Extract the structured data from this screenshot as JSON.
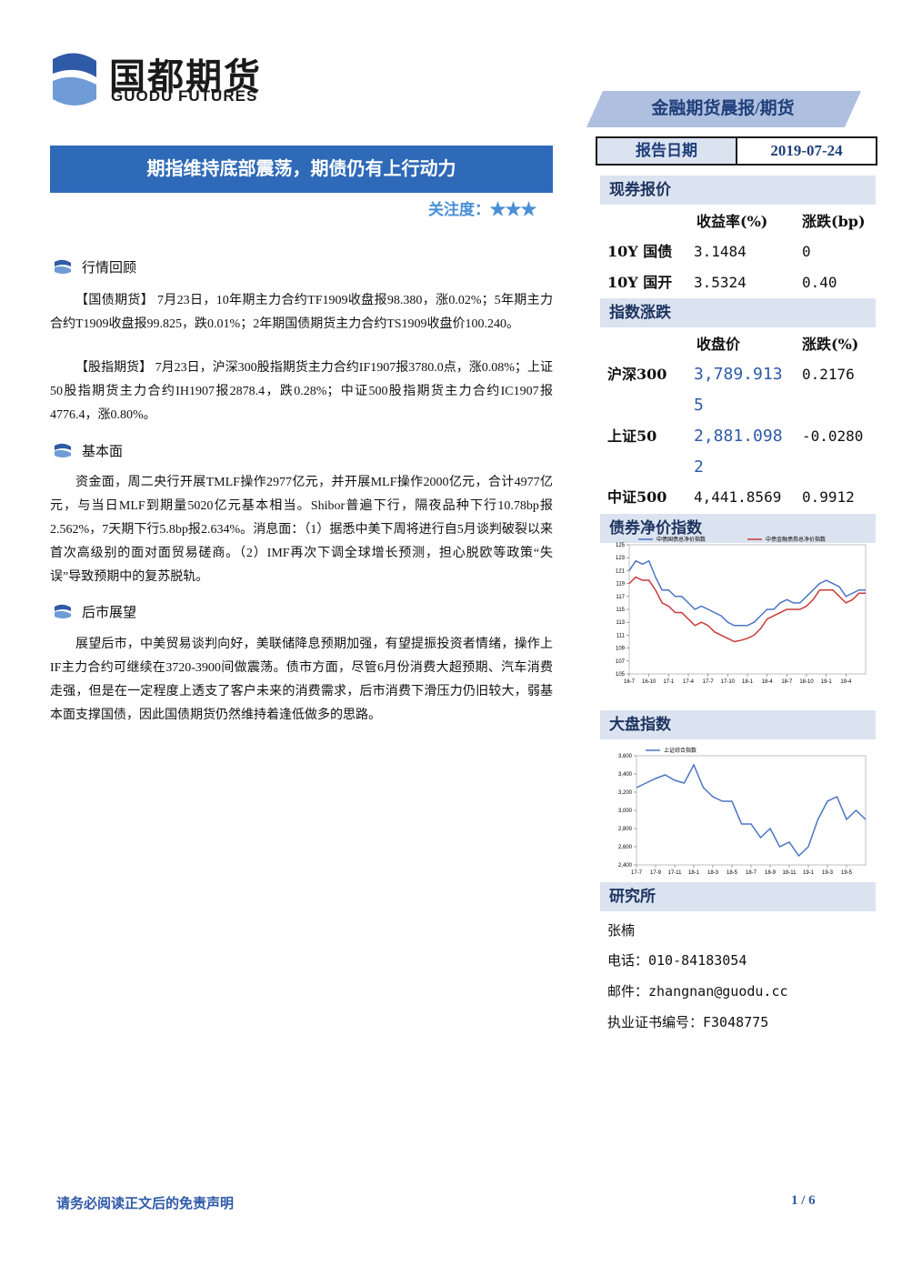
{
  "header": {
    "logo_cn": "国都期货",
    "logo_en": "GUODU FUTURES",
    "banner": "金融期货晨报/期货"
  },
  "report_date": {
    "label": "报告日期",
    "value": "2019-07-24"
  },
  "title": "期指维持底部震荡，期债仍有上行动力",
  "attention": {
    "label": "关注度：",
    "stars": "★★★"
  },
  "sections": [
    {
      "heading": "行情回顾",
      "paragraphs": [
        "【国债期货】 7月23日，10年期主力合约TF1909收盘报98.380，涨0.02%；5年期主力合约T1909收盘报99.825，跌0.01%；2年期国债期货主力合约TS1909收盘价100.240。",
        "【股指期货】 7月23日，沪深300股指期货主力合约IF1907报3780.0点，涨0.08%；上证50股指期货主力合约IH1907报2878.4，跌0.28%；中证500股指期货主力合约IC1907报4776.4，涨0.80%。"
      ]
    },
    {
      "heading": "基本面",
      "paragraphs": [
        "资金面，周二央行开展TMLF操作2977亿元，并开展MLF操作2000亿元，合计4977亿元，与当日MLF到期量5020亿元基本相当。Shibor普遍下行，隔夜品种下行10.78bp报2.562%，7天期下行5.8bp报2.634%。消息面：（1）据悉中美下周将进行自5月谈判破裂以来首次高级别的面对面贸易磋商。（2）IMF再次下调全球增长预测，担心脱欧等政策“失误”导致预期中的复苏脱轨。"
      ]
    },
    {
      "heading": "后市展望",
      "paragraphs": [
        "展望后市，中美贸易谈判向好，美联储降息预期加强，有望提振投资者情绪，操作上IF主力合约可继续在3720-3900间做震荡。债市方面，尽管6月份消费大超预期、汽车消费走强，但是在一定程度上透支了客户未来的消费需求，后市消费下滑压力仍旧较大，弱基本面支撑国债，因此国债期货仍然维持着逢低做多的思路。"
      ]
    }
  ],
  "quotes": {
    "title": "现券报价",
    "columns": [
      "收益率(%)",
      "涨跌(bp)"
    ],
    "rows": [
      {
        "name": "10Y 国债",
        "values": [
          "3.1484",
          "0"
        ]
      },
      {
        "name": "10Y 国开",
        "values": [
          "3.5324",
          "0.40"
        ]
      }
    ]
  },
  "indices": {
    "title": "指数涨跌",
    "columns": [
      "收盘价",
      "涨跌(%)"
    ],
    "rows": [
      {
        "name": "沪深300",
        "values": [
          "3,789.9135",
          "0.2176"
        ]
      },
      {
        "name": "上证50",
        "values": [
          "2,881.0982",
          "-0.0280"
        ]
      },
      {
        "name": "中证500",
        "values": [
          "4,441.8569",
          "0.9912"
        ]
      }
    ]
  },
  "chart_data": [
    {
      "type": "line",
      "title": "债券净价指数",
      "categories": [
        "16-7",
        null,
        null,
        "16-10",
        null,
        null,
        "17-1",
        null,
        null,
        "17-4",
        null,
        null,
        "17-7",
        null,
        null,
        "17-10",
        null,
        null,
        "18-1",
        null,
        null,
        "18-4",
        null,
        null,
        "18-7",
        null,
        null,
        "18-10",
        null,
        null,
        "19-1",
        null,
        null,
        "19-4",
        null,
        null,
        null
      ],
      "series": [
        {
          "name": "中债国债总净价指数",
          "color": "#4a74c4",
          "values": [
            121,
            122.5,
            122,
            122.5,
            120,
            118,
            118,
            117,
            117,
            116,
            115,
            115.5,
            115,
            114.5,
            114,
            113,
            112.5,
            112.5,
            112.5,
            113,
            114,
            115,
            115,
            116,
            116.5,
            116,
            116,
            117,
            118,
            119,
            119.5,
            119,
            118.5,
            117,
            117.5,
            118,
            118
          ]
        },
        {
          "name": "中债金融债券总净价指数",
          "color": "#c83a3a",
          "values": [
            119,
            120,
            119.5,
            119.5,
            118,
            116,
            115.5,
            114.5,
            114.5,
            113.5,
            112.5,
            113,
            112.5,
            111.5,
            111,
            110.5,
            110,
            110.2,
            110.5,
            111,
            112,
            113.5,
            114,
            114.5,
            115,
            115,
            115,
            115.5,
            116.5,
            118,
            118,
            118,
            117,
            116,
            116.5,
            117.5,
            117.5
          ]
        }
      ],
      "ylim": [
        105,
        125
      ],
      "yticks": [
        105,
        107,
        109,
        111,
        113,
        115,
        117,
        119,
        121,
        123,
        125
      ]
    },
    {
      "type": "line",
      "title": "大盘指数",
      "categories": [
        "17-7",
        null,
        "17-9",
        null,
        "17-11",
        null,
        "18-1",
        null,
        "18-3",
        null,
        "18-5",
        null,
        "18-7",
        null,
        "18-9",
        null,
        "18-11",
        null,
        "19-1",
        null,
        "19-3",
        null,
        "19-5",
        null,
        null
      ],
      "series": [
        {
          "name": "上证综合指数",
          "color": "#4a74c4",
          "values": [
            3250,
            3300,
            3350,
            3390,
            3330,
            3300,
            3500,
            3250,
            3150,
            3100,
            3100,
            2850,
            2850,
            2700,
            2800,
            2600,
            2650,
            2500,
            2600,
            2900,
            3100,
            3150,
            2900,
            3000,
            2900
          ]
        }
      ],
      "ylim": [
        2400,
        3600
      ],
      "yticks": [
        {
          "value": 2400,
          "label": "2,400"
        },
        {
          "value": 2600,
          "label": "2,600"
        },
        {
          "value": 2800,
          "label": "2,800"
        },
        {
          "value": 3000,
          "label": "3,000"
        },
        {
          "value": 3200,
          "label": "3,200"
        },
        {
          "value": 3400,
          "label": "3,400"
        },
        {
          "value": 3600,
          "label": "3,600"
        }
      ]
    }
  ],
  "research": {
    "title": "研究所",
    "lines": [
      "张楠",
      "电话：010-84183054",
      "邮件：zhangnan@guodu.cc",
      "执业证书编号：F3048775"
    ]
  },
  "footer": {
    "disclaimer": "请务必阅读正文后的免责声明",
    "page": "1 / 6"
  }
}
